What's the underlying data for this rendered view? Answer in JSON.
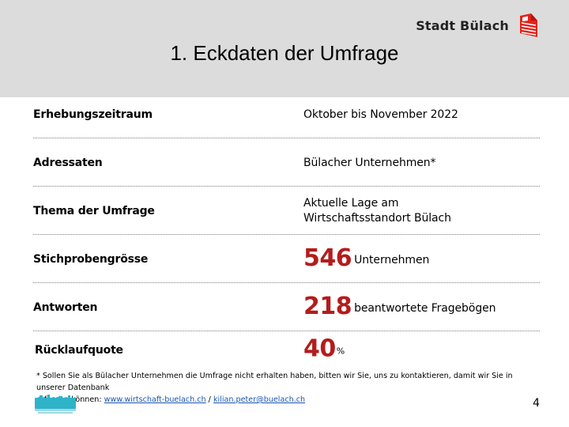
{
  "header": {
    "brand": "Stadt Bülach",
    "title": "1. Eckdaten der Umfrage"
  },
  "rows": [
    {
      "label": "Erhebungszeitraum",
      "value": "Oktober bis November 2022"
    },
    {
      "label": "Adressaten",
      "value": "Bülacher Unternehmen*"
    },
    {
      "label": "Thema der Umfrage",
      "value_line1": "Aktuelle Lage am",
      "value_line2": "Wirtschaftsstandort Bülach"
    },
    {
      "label": "Stichprobengrösse",
      "number": "546",
      "unit": "Unternehmen"
    },
    {
      "label": "Antworten",
      "number": "218",
      "unit": "beantwortete Fragebögen"
    },
    {
      "label": "Rücklaufquote",
      "number": "40",
      "unit": "%"
    }
  ],
  "footnote": {
    "line1": "* Sollen Sie als Bülacher Unternehmen die Umfrage nicht erhalten haben, bitten wir Sie, uns zu kontaktieren, damit wir Sie in unserer Datenbank",
    "line2_prefix": "erfassen können: ",
    "link1": "www.wirtschaft-buelach.ch",
    "separator": " / ",
    "link2": "kilian.peter@buelach.ch"
  },
  "footer": {
    "page_number": "4"
  },
  "colors": {
    "header_band": "#dcdcdc",
    "accent_red": "#b41c1c",
    "brand_logo_red": "#e2231a",
    "link_blue": "#1a56b0",
    "footer_logo_teal": "#2fb3c9"
  },
  "icons": {
    "brand_logo": "stadt-buelach-logo-icon",
    "footer_logo": "energiestadt-logo-icon"
  }
}
